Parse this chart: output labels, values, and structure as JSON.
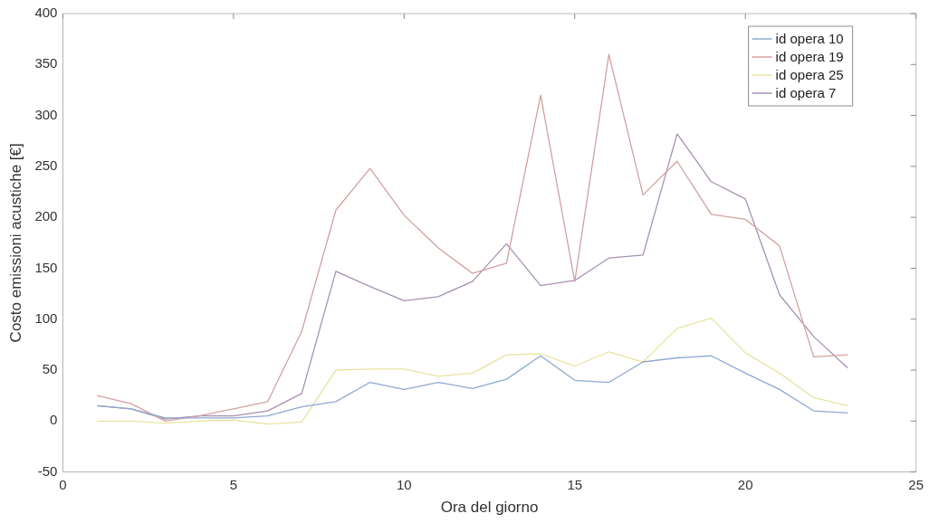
{
  "chart_data": {
    "type": "line",
    "xlabel": "Ora del giorno",
    "ylabel": "Costo emissioni acustiche [€]",
    "x": [
      1,
      2,
      3,
      4,
      5,
      6,
      7,
      8,
      9,
      10,
      11,
      12,
      13,
      14,
      15,
      16,
      17,
      18,
      19,
      20,
      21,
      22,
      23
    ],
    "series": [
      {
        "name": "id opera 10",
        "color": "#8fa9d0",
        "values": [
          15,
          12,
          3,
          3,
          3,
          5,
          14,
          19,
          38,
          31,
          38,
          32,
          41,
          64,
          40,
          38,
          58,
          62,
          64,
          47,
          31,
          10,
          8
        ]
      },
      {
        "name": "id opera 19",
        "color": "#d4a0a0",
        "values": [
          25,
          17,
          0,
          5,
          12,
          19,
          88,
          207,
          248,
          202,
          170,
          145,
          155,
          320,
          137,
          360,
          222,
          255,
          203,
          198,
          172,
          63,
          65
        ]
      },
      {
        "name": "id opera 25",
        "color": "#e8e4a0",
        "values": [
          0,
          0,
          -2,
          0,
          1,
          -3,
          -1,
          50,
          51,
          51,
          44,
          47,
          65,
          66,
          54,
          68,
          58,
          91,
          101,
          67,
          47,
          23,
          15
        ]
      },
      {
        "name": "id opera 7",
        "color": "#a890b4",
        "values": [
          15,
          12,
          2,
          5,
          5,
          10,
          27,
          147,
          132,
          118,
          122,
          137,
          174,
          133,
          138,
          160,
          163,
          282,
          235,
          218,
          124,
          83,
          52
        ]
      }
    ],
    "xlim": [
      0,
      25
    ],
    "xticks": [
      0,
      5,
      10,
      15,
      20,
      25
    ],
    "ylim": [
      -50,
      400
    ],
    "yticks": [
      -50,
      0,
      50,
      100,
      150,
      200,
      250,
      300,
      350,
      400
    ],
    "grid": false,
    "legend": "top right",
    "marker": "none",
    "line_style": "solid"
  }
}
